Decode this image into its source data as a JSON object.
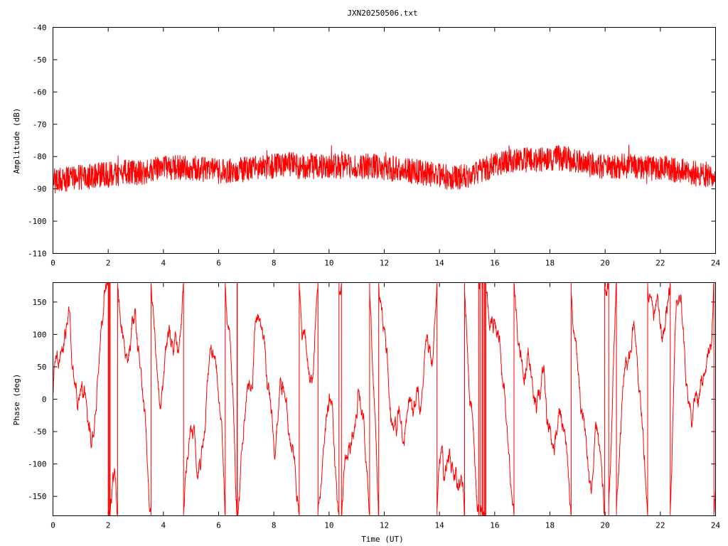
{
  "title": "JXN20250506.txt",
  "chart_data": [
    {
      "type": "line",
      "ylabel": "Amplitude (dB)",
      "xlabel": "",
      "xlim": [
        0,
        24
      ],
      "ylim": [
        -110,
        -40
      ],
      "xticks": [
        "0",
        "2",
        "4",
        "6",
        "8",
        "10",
        "12",
        "14",
        "16",
        "18",
        "20",
        "22",
        "24"
      ],
      "xtick_values": [
        0,
        2,
        4,
        6,
        8,
        10,
        12,
        14,
        16,
        18,
        20,
        22,
        24
      ],
      "yticks": [
        "-40",
        "-50",
        "-60",
        "-70",
        "-80",
        "-90",
        "-100",
        "-110"
      ],
      "ytick_values": [
        -40,
        -50,
        -60,
        -70,
        -80,
        -90,
        -100,
        -110
      ],
      "grid": false,
      "line_color": "#ff0000",
      "envelope": {
        "x": [
          0,
          0.5,
          1,
          1.5,
          2,
          2.5,
          3,
          3.5,
          4,
          4.5,
          5,
          5.5,
          6,
          6.5,
          7,
          7.5,
          8,
          8.5,
          9,
          9.5,
          10,
          10.5,
          11,
          11.5,
          12,
          12.5,
          13,
          13.5,
          14,
          14.5,
          15,
          15.5,
          16,
          16.5,
          17,
          17.5,
          18,
          18.5,
          19,
          19.5,
          20,
          20.5,
          21,
          21.5,
          22,
          22.5,
          23,
          23.5,
          24
        ],
        "y": [
          -87.5,
          -87,
          -86.5,
          -86,
          -85.5,
          -85,
          -85,
          -84.5,
          -83.5,
          -83.5,
          -83.5,
          -84,
          -84.5,
          -84.5,
          -84,
          -83.5,
          -83,
          -82.5,
          -83,
          -83,
          -83,
          -83,
          -83,
          -83,
          -83.5,
          -84,
          -84.5,
          -85,
          -86,
          -86.5,
          -86,
          -84.5,
          -82.5,
          -81,
          -81,
          -81,
          -80.5,
          -80.5,
          -81,
          -82.5,
          -83,
          -83,
          -83,
          -83.5,
          -83.5,
          -84,
          -84.5,
          -86,
          -86.5
        ]
      },
      "noise_band": 4
    },
    {
      "type": "line",
      "ylabel": "Phase (deg)",
      "xlabel": "Time (UT)",
      "xlim": [
        0,
        24
      ],
      "ylim": [
        -180,
        180
      ],
      "xticks": [
        "0",
        "2",
        "4",
        "6",
        "8",
        "10",
        "12",
        "14",
        "16",
        "18",
        "20",
        "22",
        "24"
      ],
      "xtick_values": [
        0,
        2,
        4,
        6,
        8,
        10,
        12,
        14,
        16,
        18,
        20,
        22,
        24
      ],
      "yticks": [
        "150",
        "100",
        "50",
        "0",
        "-50",
        "-100",
        "-150"
      ],
      "ytick_values": [
        150,
        100,
        50,
        0,
        -50,
        -100,
        -150
      ],
      "grid": false,
      "line_color": "#ff0000",
      "wrap": true
    }
  ]
}
